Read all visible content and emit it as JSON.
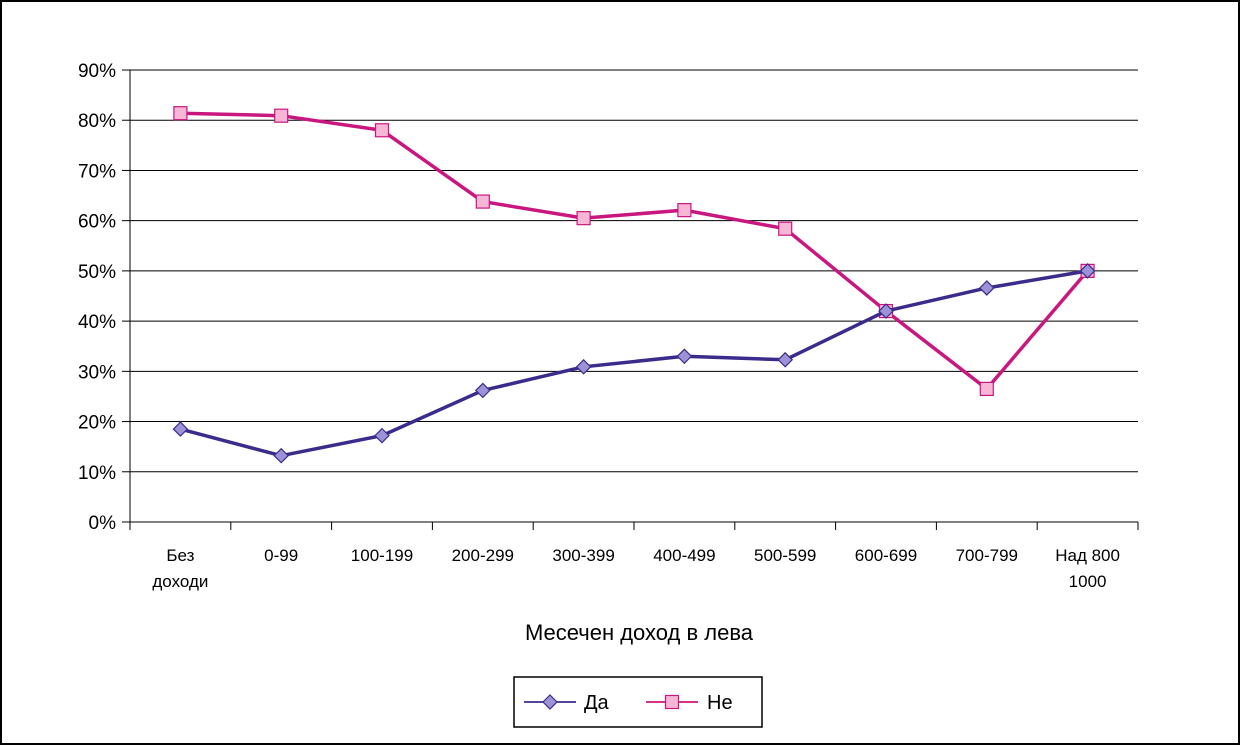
{
  "chart_data": {
    "type": "line",
    "title": "",
    "xlabel": "Месечен доход в лева",
    "ylabel": "",
    "ylim": [
      0,
      90
    ],
    "y_ticks": [
      "0%",
      "10%",
      "20%",
      "30%",
      "40%",
      "50%",
      "60%",
      "70%",
      "80%",
      "90%"
    ],
    "y_tick_values": [
      0,
      10,
      20,
      30,
      40,
      50,
      60,
      70,
      80,
      90
    ],
    "categories": [
      [
        "Без",
        "доходи"
      ],
      [
        "0-99"
      ],
      [
        "100-199"
      ],
      [
        "200-299"
      ],
      [
        "300-399"
      ],
      [
        "400-499"
      ],
      [
        "500-599"
      ],
      [
        "600-699"
      ],
      [
        "700-799"
      ],
      [
        "Над 800",
        "1000"
      ]
    ],
    "grid": true,
    "legend_position": "bottom",
    "series": [
      {
        "name": "Да",
        "color": "#3d2b8c",
        "marker": "diamond",
        "values": [
          18.5,
          13.2,
          17.2,
          26.2,
          30.9,
          33.0,
          32.3,
          42.0,
          46.6,
          50.0
        ]
      },
      {
        "name": "Не",
        "color": "#c8177f",
        "marker": "square",
        "values": [
          81.4,
          80.9,
          78.0,
          63.8,
          60.5,
          62.1,
          58.4,
          42.0,
          26.5,
          50.0
        ]
      }
    ]
  }
}
